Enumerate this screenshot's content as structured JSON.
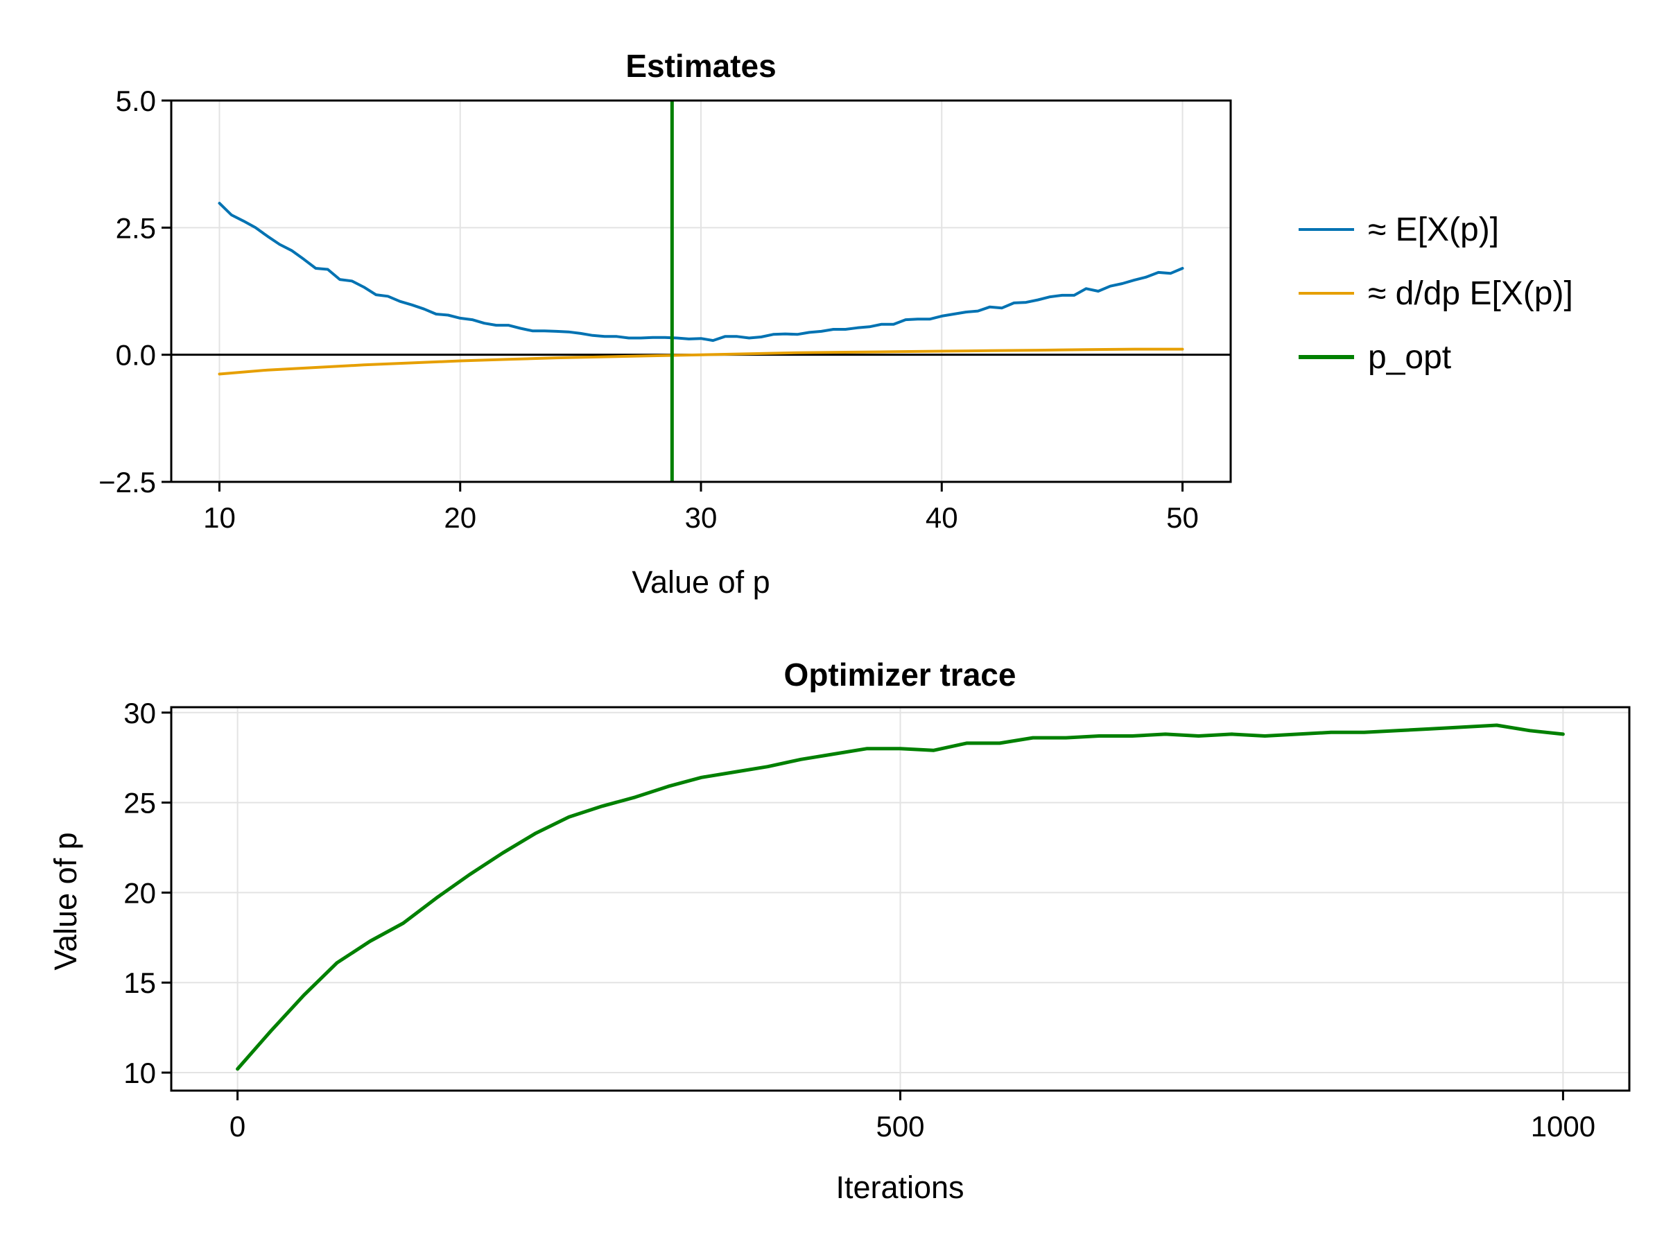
{
  "chart_data": [
    {
      "type": "line",
      "title": "Estimates",
      "xlabel": "Value of p",
      "ylabel": "",
      "xlim": [
        8,
        52
      ],
      "ylim": [
        -2.5,
        5.0
      ],
      "xticks": [
        10,
        20,
        30,
        40,
        50
      ],
      "xtick_labels": [
        "10",
        "20",
        "30",
        "40",
        "50"
      ],
      "yticks": [
        -2.5,
        0.0,
        2.5,
        5.0
      ],
      "ytick_labels": [
        "−2.5",
        "0.0",
        "2.5",
        "5.0"
      ],
      "grid": true,
      "hline": 0,
      "legend_position": "right",
      "series": [
        {
          "name": "≈ E[X(p)]",
          "color": "#0072b2",
          "x": [
            10,
            10.5,
            11,
            11.5,
            12,
            12.5,
            13,
            13.5,
            14,
            14.5,
            15,
            15.5,
            16,
            16.5,
            17,
            17.5,
            18,
            18.5,
            19,
            19.5,
            20,
            20.5,
            21,
            21.5,
            22,
            22.5,
            23,
            23.5,
            24,
            24.5,
            25,
            25.5,
            26,
            26.5,
            27,
            27.5,
            28,
            28.5,
            29,
            29.5,
            30,
            30.5,
            31,
            31.5,
            32,
            32.5,
            33,
            33.5,
            34,
            34.5,
            35,
            35.5,
            36,
            36.5,
            37,
            37.5,
            38,
            38.5,
            39,
            39.5,
            40,
            40.5,
            41,
            41.5,
            42,
            42.5,
            43,
            43.5,
            44,
            44.5,
            45,
            45.5,
            46,
            46.5,
            47,
            47.5,
            48,
            48.5,
            49,
            49.5,
            50
          ],
          "y": [
            2.98,
            2.75,
            2.63,
            2.5,
            2.33,
            2.17,
            2.05,
            1.88,
            1.7,
            1.68,
            1.48,
            1.45,
            1.33,
            1.18,
            1.15,
            1.05,
            0.98,
            0.9,
            0.8,
            0.78,
            0.72,
            0.69,
            0.62,
            0.58,
            0.58,
            0.52,
            0.47,
            0.47,
            0.46,
            0.45,
            0.42,
            0.38,
            0.36,
            0.36,
            0.33,
            0.33,
            0.34,
            0.34,
            0.33,
            0.31,
            0.32,
            0.28,
            0.36,
            0.36,
            0.33,
            0.35,
            0.4,
            0.41,
            0.4,
            0.44,
            0.46,
            0.5,
            0.5,
            0.53,
            0.55,
            0.6,
            0.6,
            0.69,
            0.7,
            0.7,
            0.76,
            0.8,
            0.84,
            0.86,
            0.94,
            0.92,
            1.02,
            1.03,
            1.08,
            1.14,
            1.17,
            1.17,
            1.3,
            1.25,
            1.35,
            1.4,
            1.47,
            1.53,
            1.62,
            1.6,
            1.7
          ]
        },
        {
          "name": "≈ d/dp E[X(p)]",
          "color": "#e69f00",
          "x": [
            10,
            12,
            14,
            16,
            18,
            20,
            22,
            24,
            26,
            28,
            30,
            32,
            34,
            36,
            38,
            40,
            42,
            44,
            46,
            48,
            50
          ],
          "y": [
            -0.38,
            -0.3,
            -0.25,
            -0.2,
            -0.16,
            -0.12,
            -0.09,
            -0.06,
            -0.04,
            -0.02,
            0.0,
            0.02,
            0.04,
            0.05,
            0.06,
            0.07,
            0.08,
            0.09,
            0.1,
            0.11,
            0.11
          ]
        },
        {
          "name": "p_opt",
          "color": "#008000",
          "vline_x": 28.8
        }
      ]
    },
    {
      "type": "line",
      "title": "Optimizer trace",
      "xlabel": "Iterations",
      "ylabel": "Value of p",
      "xlim": [
        -50,
        1050
      ],
      "ylim": [
        9,
        30.3
      ],
      "xticks": [
        0,
        500,
        1000
      ],
      "xtick_labels": [
        "0",
        "500",
        "1000"
      ],
      "yticks": [
        10,
        15,
        20,
        25,
        30
      ],
      "ytick_labels": [
        "10",
        "15",
        "20",
        "25",
        "30"
      ],
      "grid": true,
      "series": [
        {
          "color": "#008000",
          "x": [
            0,
            25,
            50,
            75,
            100,
            125,
            150,
            175,
            200,
            225,
            250,
            275,
            300,
            325,
            350,
            375,
            400,
            425,
            450,
            475,
            500,
            525,
            550,
            575,
            600,
            625,
            650,
            675,
            700,
            725,
            750,
            775,
            800,
            825,
            850,
            875,
            900,
            925,
            950,
            975,
            1000
          ],
          "y": [
            10.2,
            12.3,
            14.3,
            16.1,
            17.3,
            18.3,
            19.7,
            21.0,
            22.2,
            23.3,
            24.2,
            24.8,
            25.3,
            25.9,
            26.4,
            26.7,
            27.0,
            27.4,
            27.7,
            28.0,
            28.0,
            27.9,
            28.3,
            28.3,
            28.6,
            28.6,
            28.7,
            28.7,
            28.8,
            28.7,
            28.8,
            28.7,
            28.8,
            28.9,
            28.9,
            29.0,
            29.1,
            29.2,
            29.3,
            29.0,
            28.8
          ]
        }
      ]
    }
  ]
}
